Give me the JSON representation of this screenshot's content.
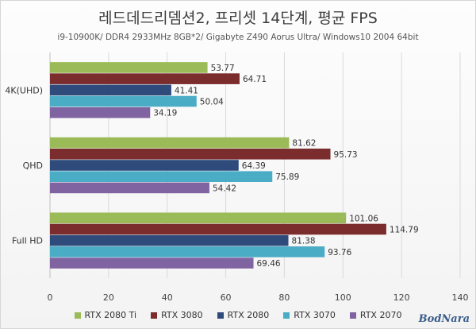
{
  "title": "레드데드리뎀션2, 프리셋 14단계, 평균 FPS",
  "subtitle": "i9-10900K/ DDR4 2933MHz 8GB*2/ Gigabyte Z490 Aorus Ultra/ Windows10 2004 64bit",
  "watermark": "BodNara",
  "chart_data": {
    "type": "bar",
    "orientation": "horizontal",
    "categories": [
      "4K(UHD)",
      "QHD",
      "Full HD"
    ],
    "series": [
      {
        "name": "RTX 2080 Ti",
        "color": "#9bbb59",
        "values": [
          53.77,
          81.62,
          101.06
        ]
      },
      {
        "name": "RTX 3080",
        "color": "#7b2c2c",
        "values": [
          64.71,
          95.73,
          114.79
        ]
      },
      {
        "name": "RTX 2080",
        "color": "#2f4b7c",
        "values": [
          41.41,
          64.39,
          81.38
        ]
      },
      {
        "name": "RTX 3070",
        "color": "#4bacc6",
        "values": [
          50.04,
          75.89,
          93.76
        ]
      },
      {
        "name": "RTX 2070",
        "color": "#8064a2",
        "values": [
          34.19,
          54.42,
          69.46
        ]
      }
    ],
    "xlim": [
      0,
      140
    ],
    "xticks": [
      0,
      20,
      40,
      60,
      80,
      100,
      120,
      140
    ],
    "grid": true,
    "legend": "bottom"
  }
}
